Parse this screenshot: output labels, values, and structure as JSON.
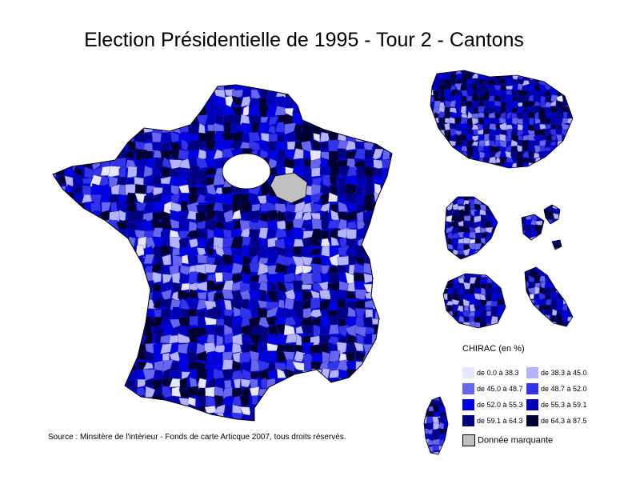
{
  "title": "Election Présidentielle de 1995 - Tour 2 - Cantons",
  "legend": {
    "title": "CHIRAC (en %)",
    "classes": [
      {
        "label": "de 0.0 à 38.3",
        "color": "#e6e6ff"
      },
      {
        "label": "de 38.3 à 45.0",
        "color": "#b3b3ff"
      },
      {
        "label": "de 45.0 à 48.7",
        "color": "#6666ee"
      },
      {
        "label": "de 48.7 à 52.0",
        "color": "#3333ee"
      },
      {
        "label": "de 52.0 à 55.3",
        "color": "#0000e6"
      },
      {
        "label": "de 55.3 à 59.1",
        "color": "#0000b8"
      },
      {
        "label": "de 59.1 à 64.3",
        "color": "#000080"
      },
      {
        "label": "de 64.3 à 87.5",
        "color": "#000033"
      }
    ],
    "missing": {
      "label": "Donnée marquante",
      "color": "#bfbfbf"
    }
  },
  "source": "Source : Minsitère de l'intérieur - Fonds de carte Articque 2007, tous droits réservés."
}
